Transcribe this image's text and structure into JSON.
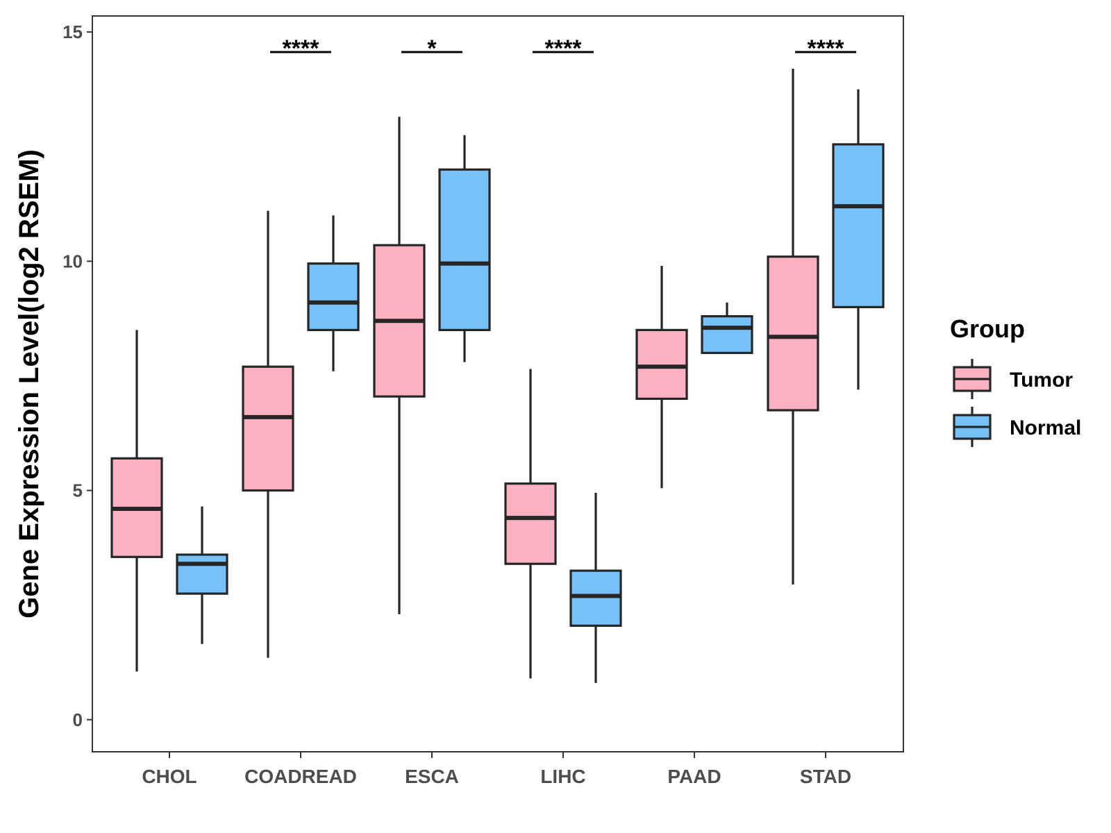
{
  "chart_data": {
    "type": "boxplot",
    "ylabel": "Gene Expression Level(log2 RSEM)",
    "xlabel": "",
    "ylim": [
      -0.7,
      15.35
    ],
    "yticks": [
      0,
      5,
      10,
      15
    ],
    "categories": [
      "CHOL",
      "COADREAD",
      "ESCA",
      "LIHC",
      "PAAD",
      "STAD"
    ],
    "legend": {
      "title": "Group",
      "position": "right",
      "entries": [
        {
          "name": "Tumor",
          "color": "#FBB1C2"
        },
        {
          "name": "Normal",
          "color": "#76C1F8"
        }
      ]
    },
    "series": [
      {
        "name": "Tumor",
        "color": "#FBB1C2",
        "boxes": [
          {
            "category": "CHOL",
            "min": 1.05,
            "q1": 3.55,
            "median": 4.6,
            "q3": 5.7,
            "max": 8.5
          },
          {
            "category": "COADREAD",
            "min": 1.35,
            "q1": 5.0,
            "median": 6.6,
            "q3": 7.7,
            "max": 11.1
          },
          {
            "category": "ESCA",
            "min": 2.3,
            "q1": 7.05,
            "median": 8.7,
            "q3": 10.35,
            "max": 13.15
          },
          {
            "category": "LIHC",
            "min": 0.9,
            "q1": 3.4,
            "median": 4.4,
            "q3": 5.15,
            "max": 7.65
          },
          {
            "category": "PAAD",
            "min": 5.05,
            "q1": 7.0,
            "median": 7.7,
            "q3": 8.5,
            "max": 9.9
          },
          {
            "category": "STAD",
            "min": 2.95,
            "q1": 6.75,
            "median": 8.35,
            "q3": 10.1,
            "max": 14.2
          }
        ]
      },
      {
        "name": "Normal",
        "color": "#76C1F8",
        "boxes": [
          {
            "category": "CHOL",
            "min": 1.65,
            "q1": 2.75,
            "median": 3.4,
            "q3": 3.6,
            "max": 4.65
          },
          {
            "category": "COADREAD",
            "min": 7.6,
            "q1": 8.5,
            "median": 9.1,
            "q3": 9.95,
            "max": 11.0
          },
          {
            "category": "ESCA",
            "min": 7.8,
            "q1": 8.5,
            "median": 9.95,
            "q3": 12.0,
            "max": 12.75
          },
          {
            "category": "LIHC",
            "min": 0.8,
            "q1": 2.05,
            "median": 2.7,
            "q3": 3.25,
            "max": 4.95
          },
          {
            "category": "PAAD",
            "min": 8.0,
            "q1": 8.0,
            "median": 8.55,
            "q3": 8.8,
            "max": 9.1
          },
          {
            "category": "STAD",
            "min": 7.2,
            "q1": 9.0,
            "median": 11.2,
            "q3": 12.55,
            "max": 13.75
          }
        ]
      }
    ],
    "annotations": [
      {
        "category": "COADREAD",
        "label": "****"
      },
      {
        "category": "ESCA",
        "label": "*"
      },
      {
        "category": "LIHC",
        "label": "****"
      },
      {
        "category": "STAD",
        "label": "****"
      }
    ]
  }
}
